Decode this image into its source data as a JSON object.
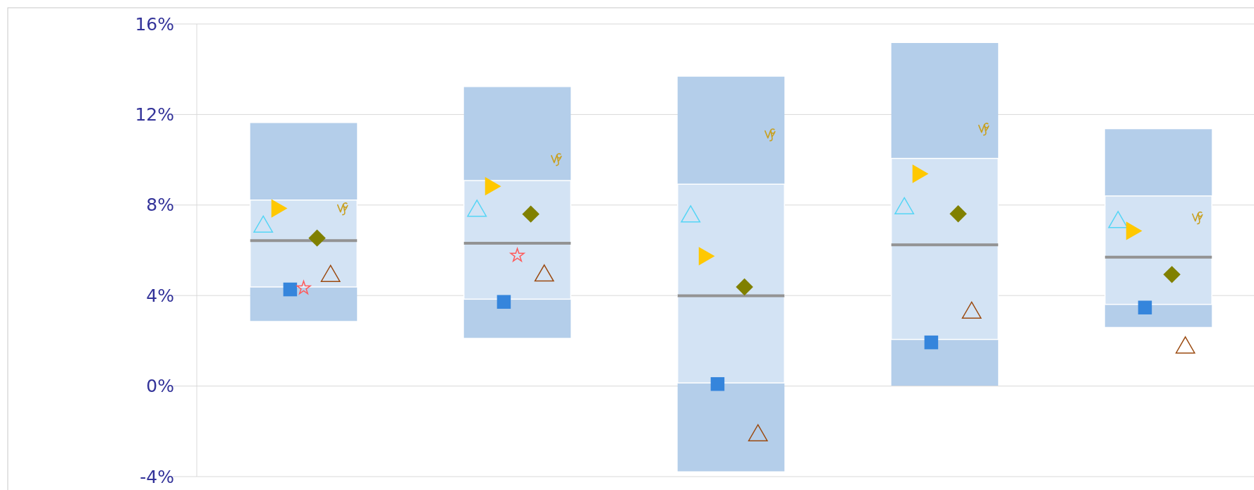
{
  "chart_data": {
    "type": "box",
    "categories": [
      null,
      null,
      null,
      null,
      null
    ],
    "ylim": [
      -4,
      16
    ],
    "yticks": [
      {
        "value": -4,
        "label": "-4%"
      },
      {
        "value": 0,
        "label": "0%"
      },
      {
        "value": 4,
        "label": "4%"
      },
      {
        "value": 8,
        "label": "8%"
      },
      {
        "value": 12,
        "label": "12%"
      },
      {
        "value": 16,
        "label": "16%"
      }
    ],
    "grid": "y",
    "tick_labels": "y",
    "series": [
      {
        "color": "#d3e3f4",
        "boxes": [
          {
            "low": 2.88,
            "q1": 4.38,
            "median": 6.43,
            "q3": 8.22,
            "high": 11.62
          },
          {
            "low": 2.13,
            "q1": 3.84,
            "median": 6.31,
            "q3": 9.08,
            "high": 13.21
          },
          {
            "low": -3.77,
            "q1": 0.14,
            "median": 3.99,
            "q3": 8.92,
            "high": 13.67
          },
          {
            "low": 0.02,
            "q1": 2.06,
            "median": 6.24,
            "q3": 10.06,
            "high": 15.16
          },
          {
            "low": 2.61,
            "q1": 3.61,
            "median": 5.7,
            "q3": 8.4,
            "high": 11.35
          }
        ]
      },
      {
        "type": "scatter",
        "marker": "triangle",
        "color": "#55d5f5",
        "values": [
          7.04,
          7.74,
          7.49,
          7.85,
          7.24
        ]
      },
      {
        "type": "scatter",
        "marker": "triangle-right",
        "color": "#ffc800",
        "values": [
          7.85,
          8.83,
          5.74,
          9.38,
          6.86
        ]
      },
      {
        "type": "scatter",
        "marker": "square",
        "color": "#3585dc",
        "values": [
          4.27,
          3.72,
          0.09,
          1.93,
          3.47
        ]
      },
      {
        "type": "scatter",
        "marker": "star",
        "color": "#ff5a5a",
        "values": [
          4.33,
          5.77,
          null,
          null,
          null
        ]
      },
      {
        "type": "scatter",
        "marker": "diamond",
        "color": "#808000",
        "values": [
          6.54,
          7.6,
          4.38,
          7.61,
          4.93
        ]
      },
      {
        "type": "scatter",
        "marker": "triangle",
        "color": "#9b4a10",
        "values": [
          4.86,
          4.88,
          -2.18,
          3.24,
          1.7
        ]
      },
      {
        "type": "scatter",
        "color": "#c8a020",
        "values": [
          7.85,
          10.03,
          11.12,
          11.37,
          7.45
        ]
      }
    ]
  }
}
